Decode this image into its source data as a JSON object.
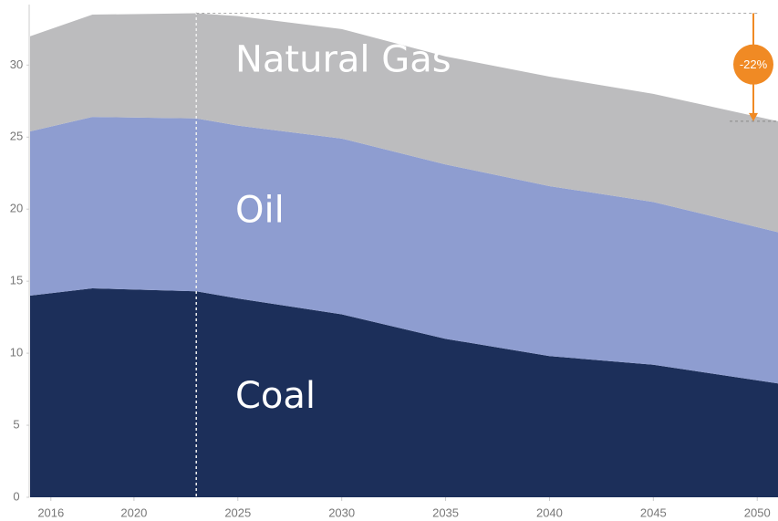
{
  "chart_data": {
    "type": "stacked_area",
    "x": [
      2015,
      2018,
      2023,
      2025,
      2030,
      2035,
      2040,
      2045,
      2051
    ],
    "series": [
      {
        "name": "Coal",
        "color": "#1c2f5a",
        "values": [
          14.0,
          14.5,
          14.3,
          13.8,
          12.7,
          11.0,
          9.8,
          9.2,
          7.9
        ]
      },
      {
        "name": "Oil",
        "color": "#8e9dd0",
        "values": [
          11.4,
          11.9,
          12.0,
          12.0,
          12.2,
          12.1,
          11.8,
          11.3,
          10.5
        ]
      },
      {
        "name": "Natural Gas",
        "color": "#bcbcbe",
        "values": [
          6.6,
          7.1,
          7.3,
          7.6,
          7.6,
          7.5,
          7.6,
          7.5,
          7.7
        ]
      }
    ],
    "xlim": [
      2015,
      2051
    ],
    "xticks": [
      2016,
      2020,
      2025,
      2030,
      2035,
      2040,
      2045,
      2050
    ],
    "ylim": [
      0,
      34.2
    ],
    "yticks": [
      0,
      5,
      10,
      15,
      20,
      25,
      30
    ],
    "reference_line_x": 2023,
    "annotation": {
      "text": "-22%",
      "color": "#f08a24"
    }
  }
}
